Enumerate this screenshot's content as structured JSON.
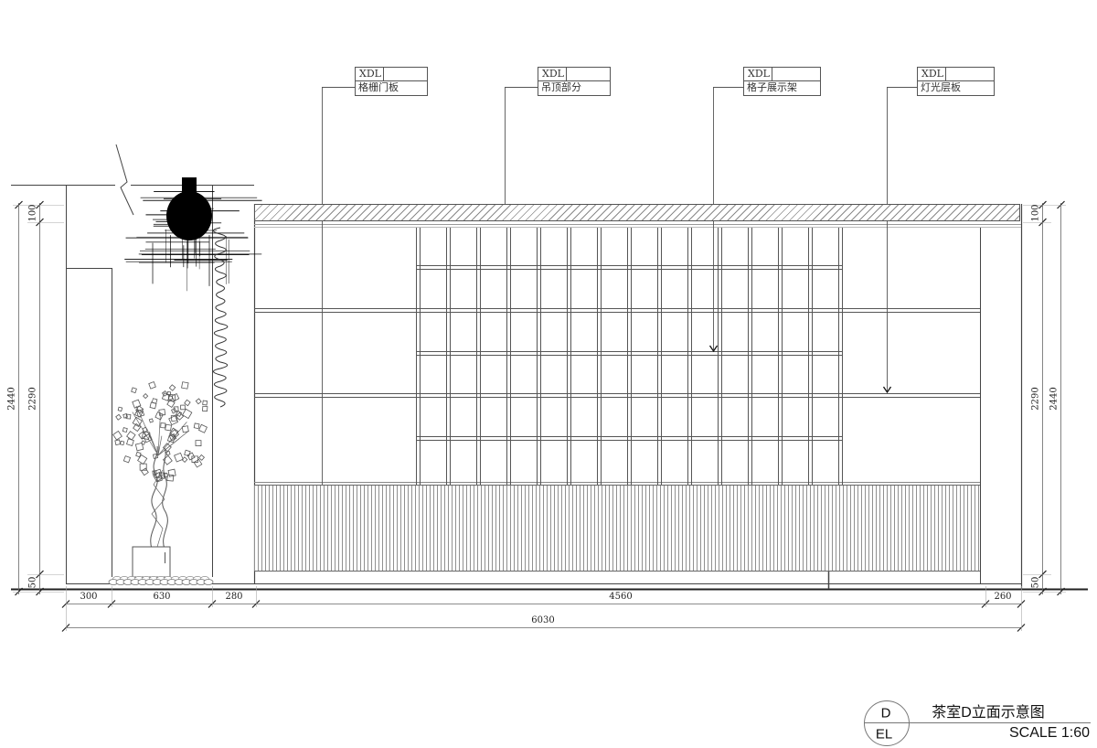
{
  "drawing": {
    "title": "茶室D立面示意图",
    "scale": "SCALE 1:60",
    "view_circle": {
      "top": "D",
      "bottom": "EL"
    }
  },
  "labels": [
    {
      "code": "XDL",
      "name": "格栅门板"
    },
    {
      "code": "XDL",
      "name": "吊顶部分"
    },
    {
      "code": "XDL",
      "name": "格子展示架"
    },
    {
      "code": "XDL",
      "name": "灯光层板"
    }
  ],
  "dimensions": {
    "left": {
      "overall": "2440",
      "segments": [
        "100",
        "2290",
        "50"
      ]
    },
    "right": {
      "overall": "2440",
      "segments": [
        "100",
        "2290",
        "50"
      ]
    },
    "bottom_segments": [
      "300",
      "630",
      "280",
      "4560",
      "260"
    ],
    "bottom_overall": "6030"
  }
}
